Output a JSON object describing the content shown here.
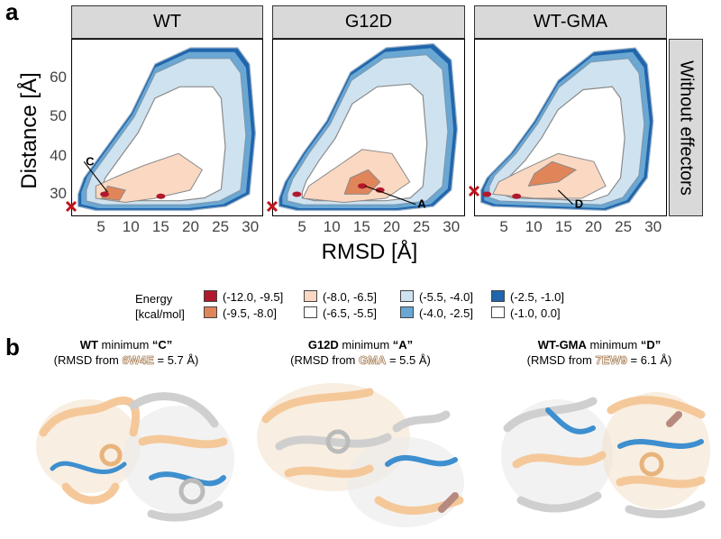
{
  "panel_a": {
    "letter": "a"
  },
  "panel_b": {
    "letter": "b"
  },
  "chart_data": {
    "type": "heatmap",
    "xlabel": "RMSD [Å]",
    "ylabel": "Distance [Å]",
    "xlim": [
      0,
      32
    ],
    "ylim": [
      25,
      68
    ],
    "x_ticks": [
      "5",
      "10",
      "15",
      "20",
      "25",
      "30"
    ],
    "y_ticks": [
      "30",
      "40",
      "50",
      "60"
    ],
    "row_strip": "Without effectors",
    "facets": [
      {
        "name": "WT",
        "annotations": [
          {
            "label": "C",
            "x": 6,
            "y": 30.5,
            "label_x": 2,
            "label_y": 38
          }
        ],
        "reference_marker": {
          "x": 0,
          "y": 27
        }
      },
      {
        "name": "G12D",
        "annotations": [
          {
            "label": "A",
            "x": 15.5,
            "y": 32,
            "label_x": 24,
            "label_y": 27.5
          }
        ],
        "reference_marker": {
          "x": 0,
          "y": 27
        }
      },
      {
        "name": "WT-GMA",
        "annotations": [
          {
            "label": "D",
            "x": 14,
            "y": 31,
            "label_x": 16.5,
            "label_y": 27.5
          }
        ],
        "reference_marker": {
          "x": 0,
          "y": 29
        }
      }
    ],
    "legend": {
      "title_line1": "Energy",
      "title_line2": "[kcal/mol]",
      "entries": [
        {
          "label": "(-12.0, -9.5]",
          "color": "#b2182b"
        },
        {
          "label": "(-9.5, -8.0]",
          "color": "#e0855a"
        },
        {
          "label": "(-8.0, -6.5]",
          "color": "#fad8c2"
        },
        {
          "label": "(-6.5, -5.5]",
          "color": "#ffffff"
        },
        {
          "label": "(-5.5, -4.0]",
          "color": "#cfe2f0"
        },
        {
          "label": "(-4.0, -2.5]",
          "color": "#6aa7d3"
        },
        {
          "label": "(-2.5, -1.0]",
          "color": "#2166ac"
        },
        {
          "label": "(-1.0, 0.0]",
          "color": "#ffffff"
        }
      ]
    }
  },
  "captions": [
    {
      "bold": "WT",
      "rest1": " minimum ",
      "quoted": "“C”",
      "pre": "(RMSD from ",
      "pdb": "6W4E",
      "post": " = 5.7 Å)"
    },
    {
      "bold": "G12D",
      "rest1": " minimum ",
      "quoted": "“A”",
      "pre": "(RMSD from ",
      "pdb": "GMA",
      "post": " = 5.5 Å)"
    },
    {
      "bold": "WT-GMA",
      "rest1": " minimum ",
      "quoted": "“D”",
      "pre": "(RMSD from ",
      "pdb": "7EW9",
      "post": " = 6.1 Å)"
    }
  ],
  "colors": {
    "orange": "#f5c89a",
    "grey": "#cfcfcf",
    "blue": "#3d8fcf",
    "red_x": "#c0141b"
  }
}
